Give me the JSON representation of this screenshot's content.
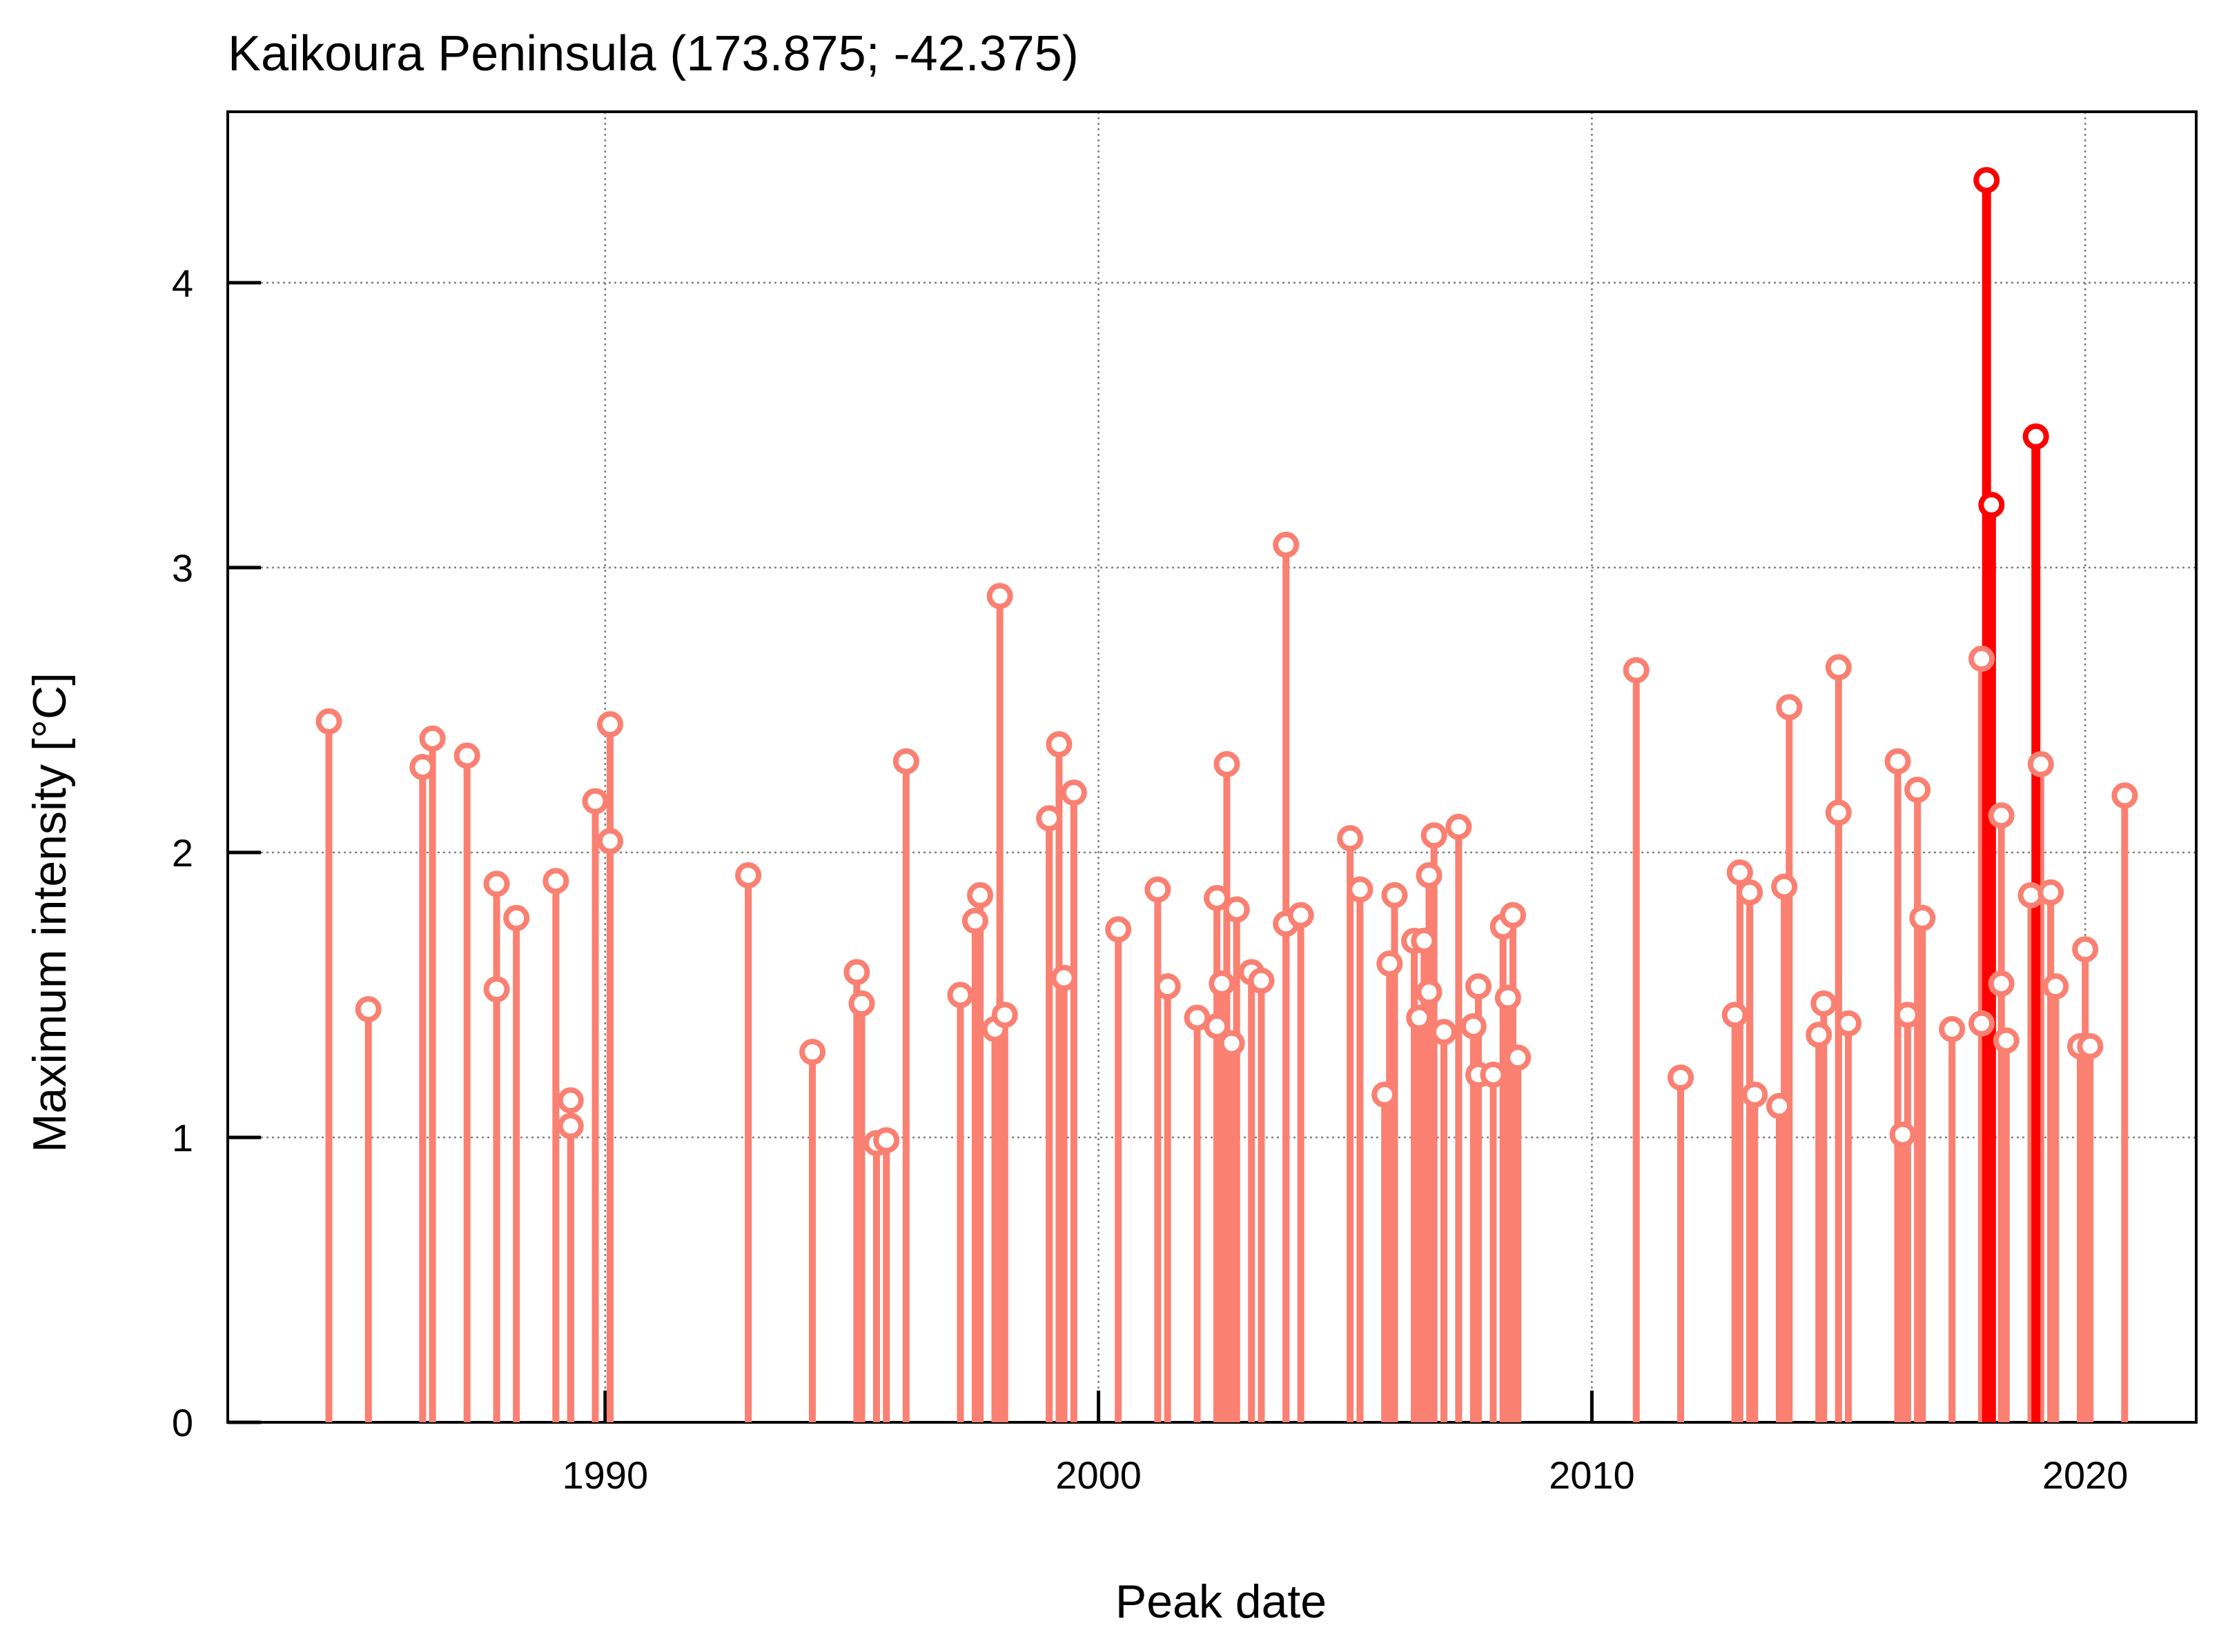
{
  "chart_data": {
    "type": "stem",
    "title": "Kaikoura Peninsula (173.875; -42.375)",
    "xlabel": "Peak date",
    "ylabel": "Maximum intensity [°C]",
    "xlim": [
      1982.35,
      2022.25
    ],
    "ylim": [
      0,
      4.6
    ],
    "xticks": [
      1990,
      2000,
      2010,
      2020
    ],
    "yticks": [
      0,
      1,
      2,
      3,
      4
    ],
    "grid": true,
    "colors": {
      "normal": "#fa8072",
      "highlight": "#ff0000",
      "marker_fill": "#ffffff"
    },
    "series": [
      {
        "values": [
          [
            1984.4,
            2.46
          ],
          [
            1985.2,
            1.45
          ],
          [
            1986.3,
            2.3
          ],
          [
            1986.5,
            2.4
          ],
          [
            1987.2,
            2.34
          ],
          [
            1987.8,
            1.89
          ],
          [
            1987.8,
            1.52
          ],
          [
            1988.2,
            1.77
          ],
          [
            1989.0,
            1.9
          ],
          [
            1989.3,
            1.13
          ],
          [
            1989.3,
            1.04
          ],
          [
            1989.8,
            2.18
          ],
          [
            1990.1,
            2.45
          ],
          [
            1990.1,
            2.04
          ],
          [
            1992.9,
            1.92
          ],
          [
            1994.2,
            1.3
          ],
          [
            1995.1,
            1.58
          ],
          [
            1995.2,
            1.47
          ],
          [
            1995.5,
            0.98
          ],
          [
            1995.7,
            0.99
          ],
          [
            1996.1,
            2.32
          ],
          [
            1997.2,
            1.5
          ],
          [
            1997.5,
            1.76
          ],
          [
            1997.6,
            1.85
          ],
          [
            1997.9,
            1.38
          ],
          [
            1998.0,
            2.9
          ],
          [
            1998.1,
            1.43
          ],
          [
            1999.0,
            2.12
          ],
          [
            1999.2,
            2.38
          ],
          [
            1999.3,
            1.56
          ],
          [
            1999.5,
            2.21
          ],
          [
            2000.4,
            1.73
          ],
          [
            2001.2,
            1.87
          ],
          [
            2001.4,
            1.53
          ],
          [
            2002.0,
            1.42
          ],
          [
            2002.4,
            1.39
          ],
          [
            2002.4,
            1.84
          ],
          [
            2002.5,
            1.54
          ],
          [
            2002.6,
            2.31
          ],
          [
            2002.7,
            1.33
          ],
          [
            2002.8,
            1.8
          ],
          [
            2003.1,
            1.58
          ],
          [
            2003.3,
            1.55
          ],
          [
            2003.8,
            3.08
          ],
          [
            2003.8,
            1.75
          ],
          [
            2004.1,
            1.78
          ],
          [
            2005.1,
            2.05
          ],
          [
            2005.3,
            1.87
          ],
          [
            2005.8,
            1.15
          ],
          [
            2005.9,
            1.61
          ],
          [
            2006.0,
            1.85
          ],
          [
            2006.4,
            1.69
          ],
          [
            2006.5,
            1.42
          ],
          [
            2006.6,
            1.69
          ],
          [
            2006.7,
            1.92
          ],
          [
            2006.7,
            1.51
          ],
          [
            2006.8,
            2.06
          ],
          [
            2007.0,
            1.37
          ],
          [
            2007.3,
            2.09
          ],
          [
            2007.6,
            1.39
          ],
          [
            2007.7,
            1.53
          ],
          [
            2007.7,
            1.22
          ],
          [
            2008.0,
            1.22
          ],
          [
            2008.2,
            1.74
          ],
          [
            2008.3,
            1.49
          ],
          [
            2008.4,
            1.78
          ],
          [
            2008.5,
            1.28
          ],
          [
            2010.9,
            2.64
          ],
          [
            2011.8,
            1.21
          ],
          [
            2012.9,
            1.43
          ],
          [
            2013.0,
            1.93
          ],
          [
            2013.2,
            1.86
          ],
          [
            2013.3,
            1.15
          ],
          [
            2013.8,
            1.11
          ],
          [
            2013.9,
            1.88
          ],
          [
            2014.0,
            2.51
          ],
          [
            2014.6,
            1.36
          ],
          [
            2014.7,
            1.47
          ],
          [
            2015.0,
            2.65
          ],
          [
            2015.0,
            2.14
          ],
          [
            2015.2,
            1.4
          ],
          [
            2016.2,
            2.32
          ],
          [
            2016.3,
            1.01
          ],
          [
            2016.4,
            1.43
          ],
          [
            2016.6,
            2.22
          ],
          [
            2016.7,
            1.77
          ],
          [
            2017.3,
            1.38
          ],
          [
            2017.9,
            2.68
          ],
          [
            2017.9,
            1.4
          ],
          [
            2018.3,
            2.13
          ],
          [
            2018.3,
            1.54
          ],
          [
            2018.4,
            1.34
          ],
          [
            2018.9,
            1.85
          ],
          [
            2019.1,
            2.31
          ],
          [
            2019.3,
            1.86
          ],
          [
            2019.4,
            1.53
          ],
          [
            2019.9,
            1.32
          ],
          [
            2020.0,
            1.66
          ],
          [
            2020.1,
            1.32
          ],
          [
            2020.8,
            2.2
          ]
        ]
      },
      {
        "values": [
          [
            2018.0,
            4.36
          ],
          [
            2018.1,
            3.22
          ],
          [
            2019.0,
            3.46
          ]
        ]
      }
    ]
  }
}
